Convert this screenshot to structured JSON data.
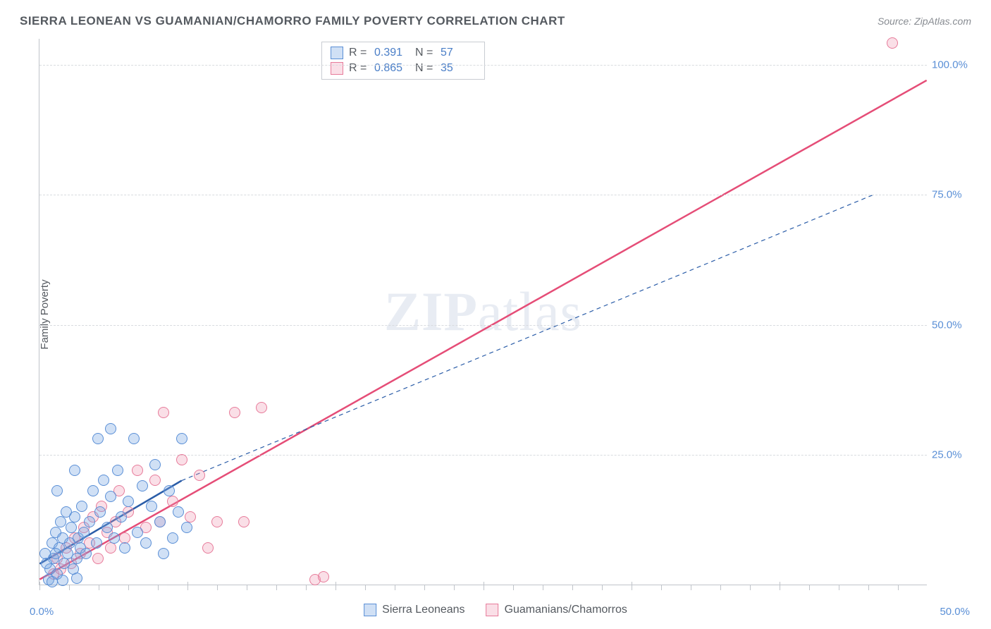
{
  "title": "SIERRA LEONEAN VS GUAMANIAN/CHAMORRO FAMILY POVERTY CORRELATION CHART",
  "source": "Source: ZipAtlas.com",
  "watermark": {
    "bold": "ZIP",
    "light": "atlas"
  },
  "y_axis_title": "Family Poverty",
  "axes": {
    "xlim": [
      0,
      50
    ],
    "ylim": [
      0,
      105
    ],
    "x_ticks_major": [
      0,
      8.33,
      16.67,
      25,
      33.33,
      41.67,
      50
    ],
    "x_ticks_minor_step": 1.667,
    "y_gridlines": [
      25,
      50,
      75,
      100
    ],
    "y_tick_labels": [
      "25.0%",
      "50.0%",
      "75.0%",
      "100.0%"
    ],
    "x_min_label": "0.0%",
    "x_max_label": "50.0%",
    "grid_color": "#d8dbdf"
  },
  "stats": {
    "series1": {
      "R": "0.391",
      "N": "57"
    },
    "series2": {
      "R": "0.865",
      "N": "35"
    }
  },
  "legend": {
    "series1_label": "Sierra Leoneans",
    "series2_label": "Guamanians/Chamorros"
  },
  "series": [
    {
      "name": "Sierra Leoneans",
      "marker_fill": "rgba(120,165,225,0.35)",
      "marker_stroke": "#5a8fd6",
      "marker_radius": 8,
      "trend_color": "#2b5da8",
      "trend_dash": "none",
      "trend_width": 2.5,
      "trend_ext_dash": "6,5",
      "trend_ext_width": 1.2,
      "trend": {
        "x1": 0,
        "y1": 4,
        "x2": 8,
        "y2": 20
      },
      "trend_ext": {
        "x1": 8,
        "y1": 20,
        "x2": 47,
        "y2": 75
      },
      "points": [
        [
          0.3,
          6
        ],
        [
          0.5,
          1
        ],
        [
          0.6,
          3
        ],
        [
          0.7,
          8
        ],
        [
          0.8,
          5
        ],
        [
          0.9,
          10
        ],
        [
          1.0,
          2
        ],
        [
          1.1,
          7
        ],
        [
          1.2,
          12
        ],
        [
          1.3,
          9
        ],
        [
          1.4,
          4
        ],
        [
          1.5,
          14
        ],
        [
          1.6,
          6
        ],
        [
          1.7,
          8
        ],
        [
          1.8,
          11
        ],
        [
          1.9,
          3
        ],
        [
          2.0,
          13
        ],
        [
          2.1,
          5
        ],
        [
          2.2,
          9
        ],
        [
          2.3,
          7
        ],
        [
          2.4,
          15
        ],
        [
          2.5,
          10
        ],
        [
          2.6,
          6
        ],
        [
          2.8,
          12
        ],
        [
          3.0,
          18
        ],
        [
          3.2,
          8
        ],
        [
          3.4,
          14
        ],
        [
          3.6,
          20
        ],
        [
          3.8,
          11
        ],
        [
          4.0,
          17
        ],
        [
          4.2,
          9
        ],
        [
          4.4,
          22
        ],
        [
          4.6,
          13
        ],
        [
          4.8,
          7
        ],
        [
          5.0,
          16
        ],
        [
          5.3,
          28
        ],
        [
          5.5,
          10
        ],
        [
          5.8,
          19
        ],
        [
          6.0,
          8
        ],
        [
          6.3,
          15
        ],
        [
          6.5,
          23
        ],
        [
          6.8,
          12
        ],
        [
          7.0,
          6
        ],
        [
          7.3,
          18
        ],
        [
          7.5,
          9
        ],
        [
          7.8,
          14
        ],
        [
          8.0,
          28
        ],
        [
          8.3,
          11
        ],
        [
          4.0,
          30
        ],
        [
          3.3,
          28
        ],
        [
          2.0,
          22
        ],
        [
          1.0,
          18
        ],
        [
          0.7,
          0.5
        ],
        [
          1.3,
          0.8
        ],
        [
          2.1,
          1.2
        ],
        [
          0.4,
          4
        ],
        [
          0.9,
          6
        ]
      ]
    },
    {
      "name": "Guamanians/Chamorros",
      "marker_fill": "rgba(240,150,175,0.30)",
      "marker_stroke": "#e77b9a",
      "marker_radius": 8,
      "trend_color": "#e54d77",
      "trend_dash": "none",
      "trend_width": 2.5,
      "trend": {
        "x1": 0,
        "y1": 1,
        "x2": 50,
        "y2": 97
      },
      "points": [
        [
          0.8,
          2
        ],
        [
          1.0,
          5
        ],
        [
          1.2,
          3
        ],
        [
          1.5,
          7
        ],
        [
          1.8,
          4
        ],
        [
          2.0,
          9
        ],
        [
          2.3,
          6
        ],
        [
          2.5,
          11
        ],
        [
          2.8,
          8
        ],
        [
          3.0,
          13
        ],
        [
          3.3,
          5
        ],
        [
          3.5,
          15
        ],
        [
          3.8,
          10
        ],
        [
          4.0,
          7
        ],
        [
          4.3,
          12
        ],
        [
          4.5,
          18
        ],
        [
          4.8,
          9
        ],
        [
          5.0,
          14
        ],
        [
          5.5,
          22
        ],
        [
          6.0,
          11
        ],
        [
          6.5,
          20
        ],
        [
          7.0,
          33
        ],
        [
          7.5,
          16
        ],
        [
          8.0,
          24
        ],
        [
          8.5,
          13
        ],
        [
          9.0,
          21
        ],
        [
          10.0,
          12
        ],
        [
          11.0,
          33
        ],
        [
          12.5,
          34
        ],
        [
          11.5,
          12
        ],
        [
          15.5,
          1
        ],
        [
          16.0,
          1.5
        ],
        [
          9.5,
          7
        ],
        [
          48,
          104
        ],
        [
          6.8,
          12
        ]
      ]
    }
  ]
}
